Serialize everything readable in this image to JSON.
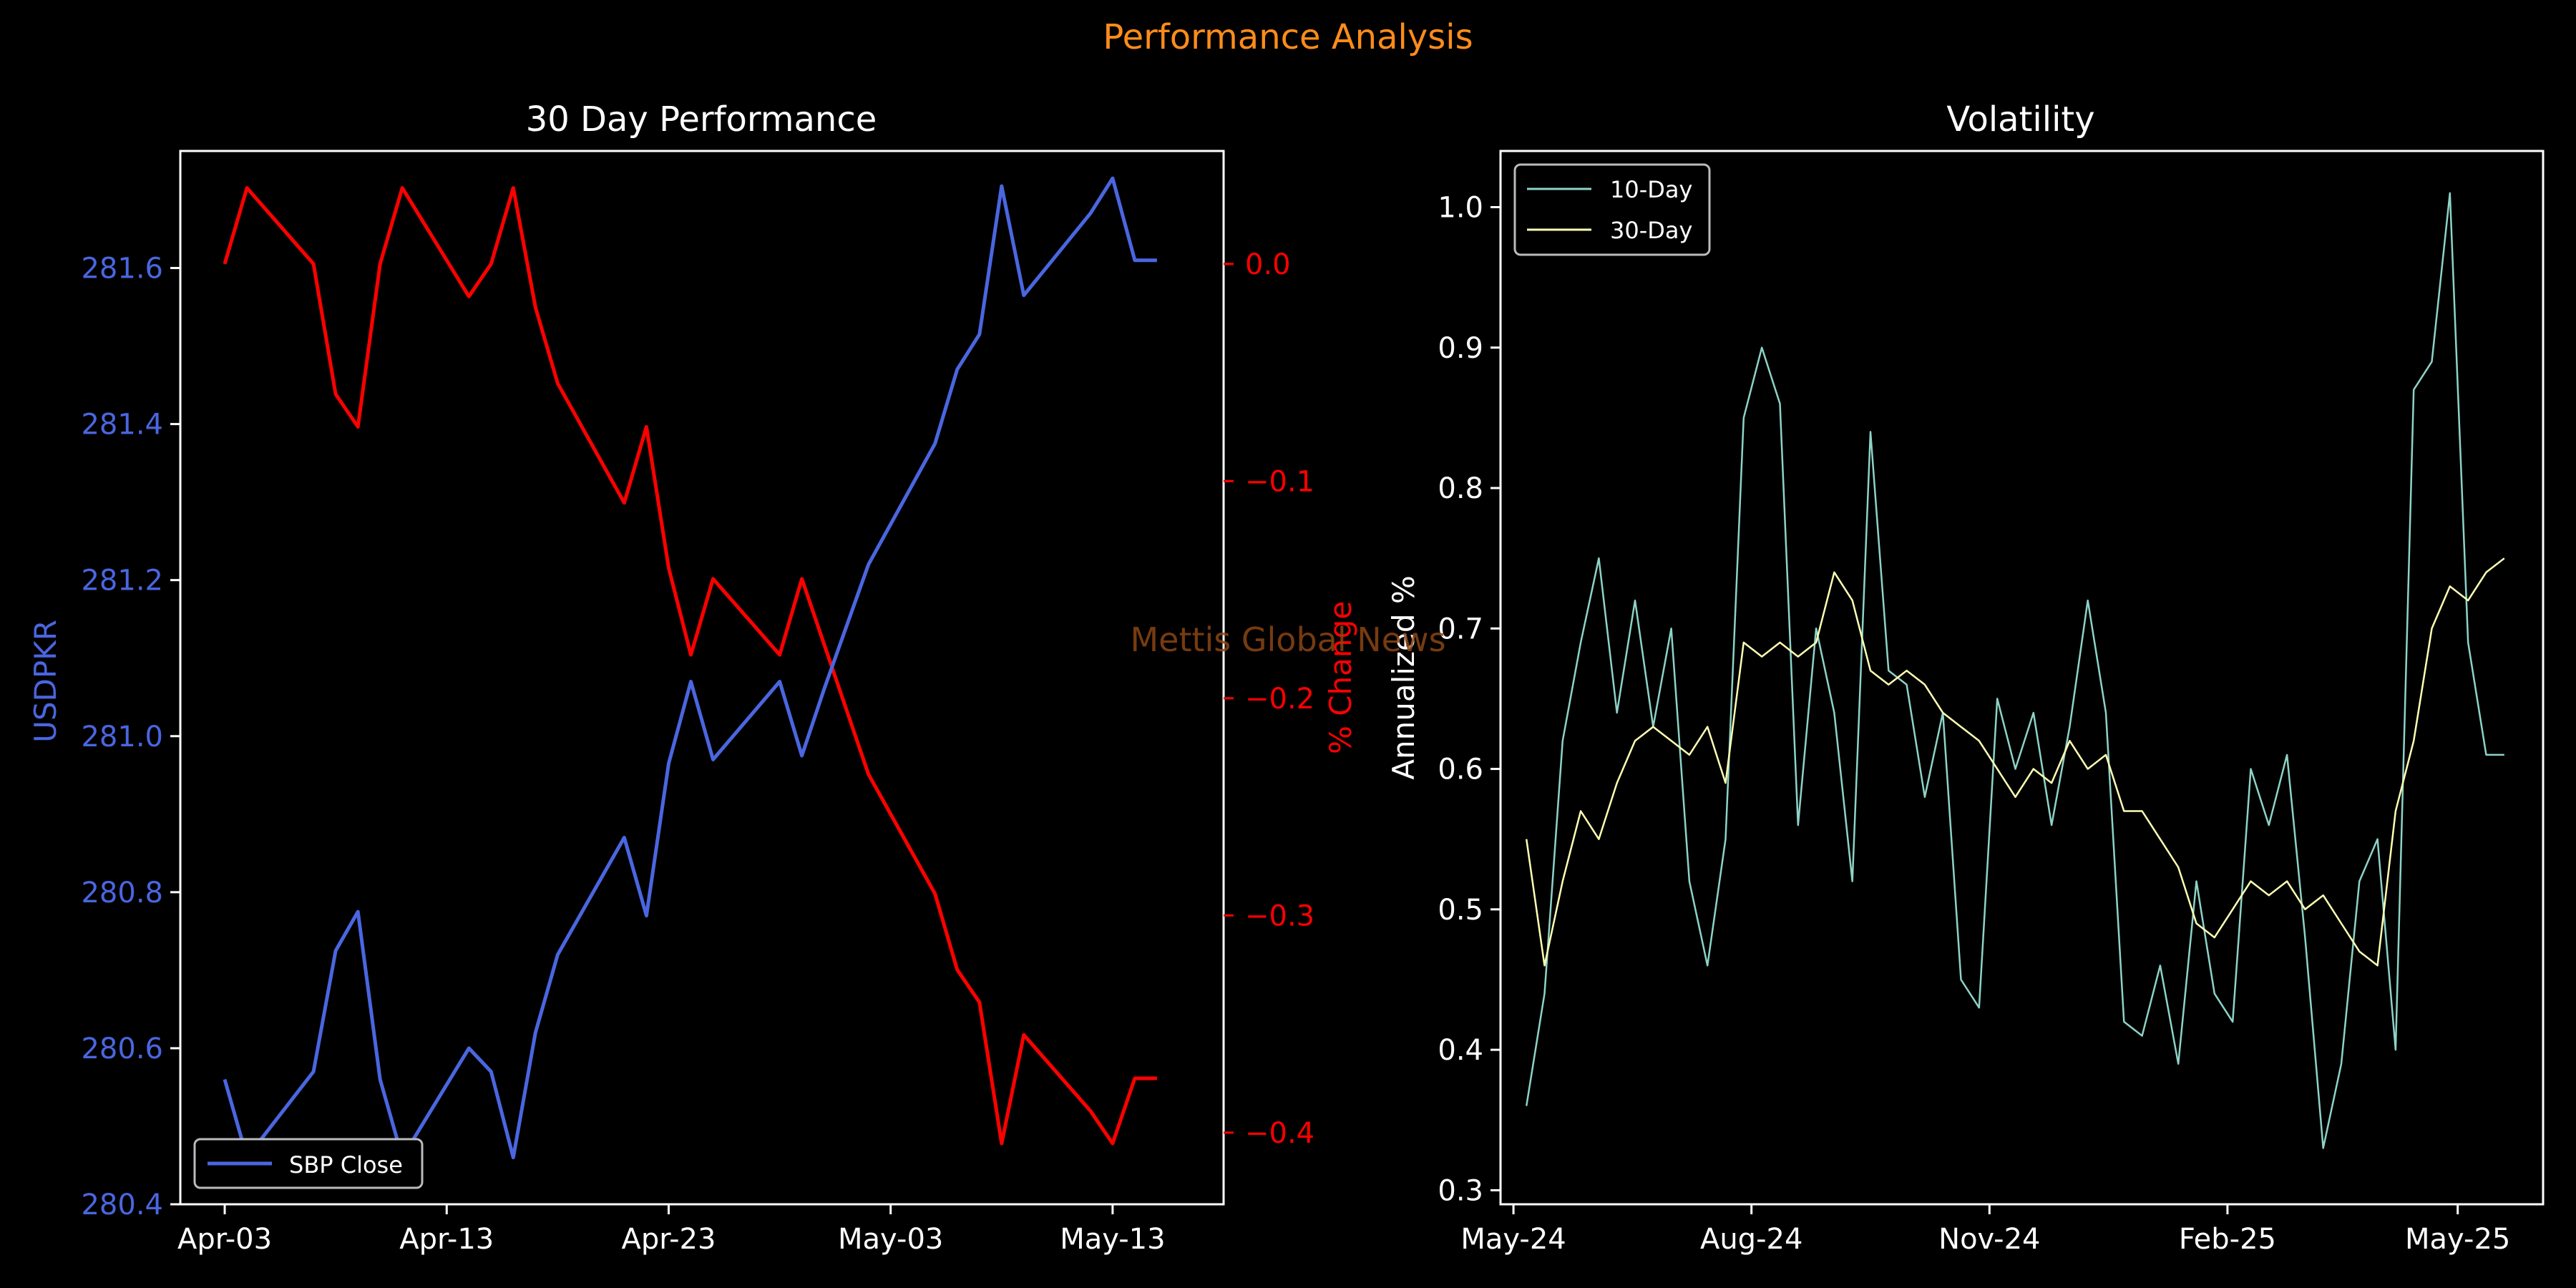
{
  "header": {
    "title": "Performance Analysis",
    "title_color": "#ff8c1a"
  },
  "watermark": {
    "text": "Mettis Global News",
    "color": "#8b4513"
  },
  "chart_data": [
    {
      "type": "line",
      "title": "30 Day Performance",
      "x_type": "date",
      "xticks": [
        "Apr-03",
        "Apr-13",
        "Apr-23",
        "May-03",
        "May-13"
      ],
      "left_axis": {
        "label": "USDPKR",
        "color": "#4a66e0",
        "ylim": [
          280.4,
          281.75
        ],
        "ticks": [
          "280.4",
          "280.6",
          "280.8",
          "281.0",
          "281.2",
          "281.4",
          "281.6"
        ]
      },
      "right_axis": {
        "label": "% Change",
        "color": "#ff0000",
        "ylim": [
          -0.433,
          0.052
        ],
        "ticks": [
          "0.0",
          "−0.1",
          "−0.2",
          "−0.3",
          "−0.4"
        ]
      },
      "legend": {
        "position": "lower-left",
        "entries": [
          "SBP Close"
        ]
      },
      "series": [
        {
          "name": "SBP Close",
          "axis": "left",
          "color": "#4a66e0",
          "x": [
            "2025-04-03",
            "2025-04-04",
            "2025-04-07",
            "2025-04-08",
            "2025-04-09",
            "2025-04-10",
            "2025-04-11",
            "2025-04-14",
            "2025-04-15",
            "2025-04-16",
            "2025-04-17",
            "2025-04-18",
            "2025-04-21",
            "2025-04-22",
            "2025-04-23",
            "2025-04-24",
            "2025-04-25",
            "2025-04-28",
            "2025-04-29",
            "2025-04-30",
            "2025-05-02",
            "2025-05-05",
            "2025-05-06",
            "2025-05-07",
            "2025-05-08",
            "2025-05-09",
            "2025-05-12",
            "2025-05-13",
            "2025-05-14",
            "2025-05-15"
          ],
          "y": [
            280.56,
            280.46,
            280.57,
            280.725,
            280.775,
            280.56,
            280.46,
            280.6,
            280.57,
            280.46,
            280.62,
            280.72,
            280.87,
            280.77,
            280.965,
            281.07,
            280.97,
            281.07,
            280.975,
            281.06,
            281.22,
            281.375,
            281.47,
            281.515,
            281.705,
            281.565,
            281.67,
            281.715,
            281.61,
            281.61
          ],
          "y_pct_change": [
            0.0,
            0.035,
            0.0,
            -0.06,
            -0.075,
            0.0,
            0.035,
            -0.015,
            0.0,
            0.035,
            -0.02,
            -0.055,
            -0.11,
            -0.075,
            -0.14,
            -0.18,
            -0.145,
            -0.18,
            -0.145,
            -0.175,
            -0.235,
            -0.29,
            -0.325,
            -0.34,
            -0.405,
            -0.355,
            -0.39,
            -0.405,
            -0.375,
            -0.375
          ]
        }
      ]
    },
    {
      "type": "line",
      "title": "Volatility",
      "ylabel": "Annualized %",
      "xticks": [
        "May-24",
        "Aug-24",
        "Nov-24",
        "Feb-25",
        "May-25"
      ],
      "yticks": [
        "0.3",
        "0.4",
        "0.5",
        "0.6",
        "0.7",
        "0.8",
        "0.9",
        "1.0"
      ],
      "ylim": [
        0.29,
        1.04
      ],
      "legend": {
        "position": "top-left",
        "entries": [
          "10-Day",
          "30-Day"
        ]
      },
      "series": [
        {
          "name": "10-Day",
          "color": "#8dd3c7",
          "x": [
            "2024-05-06",
            "2024-05-13",
            "2024-05-20",
            "2024-05-27",
            "2024-06-03",
            "2024-06-10",
            "2024-06-17",
            "2024-06-24",
            "2024-07-01",
            "2024-07-08",
            "2024-07-15",
            "2024-07-22",
            "2024-07-29",
            "2024-08-05",
            "2024-08-12",
            "2024-08-19",
            "2024-08-26",
            "2024-09-02",
            "2024-09-09",
            "2024-09-16",
            "2024-09-23",
            "2024-09-30",
            "2024-10-07",
            "2024-10-14",
            "2024-10-21",
            "2024-10-28",
            "2024-11-04",
            "2024-11-11",
            "2024-11-18",
            "2024-11-25",
            "2024-12-02",
            "2024-12-09",
            "2024-12-16",
            "2024-12-23",
            "2024-12-30",
            "2025-01-06",
            "2025-01-13",
            "2025-01-20",
            "2025-01-27",
            "2025-02-03",
            "2025-02-10",
            "2025-02-17",
            "2025-02-24",
            "2025-03-03",
            "2025-03-10",
            "2025-03-17",
            "2025-03-24",
            "2025-03-31",
            "2025-04-07",
            "2025-04-14",
            "2025-04-21",
            "2025-04-28",
            "2025-05-05",
            "2025-05-12",
            "2025-05-19"
          ],
          "y": [
            0.36,
            0.44,
            0.62,
            0.69,
            0.75,
            0.64,
            0.72,
            0.63,
            0.7,
            0.52,
            0.46,
            0.55,
            0.85,
            0.9,
            0.86,
            0.56,
            0.7,
            0.64,
            0.52,
            0.84,
            0.67,
            0.66,
            0.58,
            0.64,
            0.45,
            0.43,
            0.65,
            0.6,
            0.64,
            0.56,
            0.63,
            0.72,
            0.64,
            0.42,
            0.41,
            0.46,
            0.39,
            0.52,
            0.44,
            0.42,
            0.6,
            0.56,
            0.61,
            0.48,
            0.33,
            0.39,
            0.52,
            0.55,
            0.4,
            0.87,
            0.89,
            1.01,
            0.69,
            0.61,
            0.61
          ]
        },
        {
          "name": "30-Day",
          "color": "#ffffb3",
          "x": [
            "2024-05-06",
            "2024-05-13",
            "2024-05-20",
            "2024-05-27",
            "2024-06-03",
            "2024-06-10",
            "2024-06-17",
            "2024-06-24",
            "2024-07-01",
            "2024-07-08",
            "2024-07-15",
            "2024-07-22",
            "2024-07-29",
            "2024-08-05",
            "2024-08-12",
            "2024-08-19",
            "2024-08-26",
            "2024-09-02",
            "2024-09-09",
            "2024-09-16",
            "2024-09-23",
            "2024-09-30",
            "2024-10-07",
            "2024-10-14",
            "2024-10-21",
            "2024-10-28",
            "2024-11-04",
            "2024-11-11",
            "2024-11-18",
            "2024-11-25",
            "2024-12-02",
            "2024-12-09",
            "2024-12-16",
            "2024-12-23",
            "2024-12-30",
            "2025-01-06",
            "2025-01-13",
            "2025-01-20",
            "2025-01-27",
            "2025-02-03",
            "2025-02-10",
            "2025-02-17",
            "2025-02-24",
            "2025-03-03",
            "2025-03-10",
            "2025-03-17",
            "2025-03-24",
            "2025-03-31",
            "2025-04-07",
            "2025-04-14",
            "2025-04-21",
            "2025-04-28",
            "2025-05-05",
            "2025-05-12",
            "2025-05-19"
          ],
          "y": [
            0.55,
            0.46,
            0.52,
            0.57,
            0.55,
            0.59,
            0.62,
            0.63,
            0.62,
            0.61,
            0.63,
            0.59,
            0.69,
            0.68,
            0.69,
            0.68,
            0.69,
            0.74,
            0.72,
            0.67,
            0.66,
            0.67,
            0.66,
            0.64,
            0.63,
            0.62,
            0.6,
            0.58,
            0.6,
            0.59,
            0.62,
            0.6,
            0.61,
            0.57,
            0.57,
            0.55,
            0.53,
            0.49,
            0.48,
            0.5,
            0.52,
            0.51,
            0.52,
            0.5,
            0.51,
            0.49,
            0.47,
            0.46,
            0.57,
            0.62,
            0.7,
            0.73,
            0.72,
            0.74,
            0.75
          ]
        }
      ]
    }
  ]
}
